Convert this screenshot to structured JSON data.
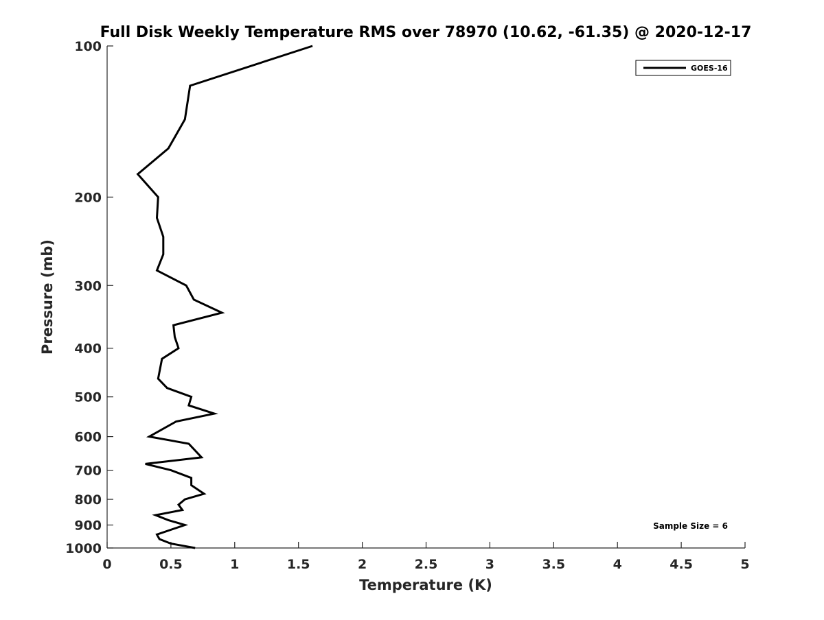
{
  "chart_data": {
    "type": "line",
    "title": "Full Disk Weekly Temperature RMS over 78970 (10.62, -61.35) @ 2020-12-17",
    "xlabel": "Temperature (K)",
    "ylabel": "Pressure (mb)",
    "xlim": [
      0,
      5
    ],
    "ylim": [
      100,
      1000
    ],
    "yscale": "log",
    "y_reversed": true,
    "grid": false,
    "xticks": [
      "0",
      "0.5",
      "1",
      "1.5",
      "2",
      "2.5",
      "3",
      "3.5",
      "4",
      "4.5",
      "5"
    ],
    "yticks": [
      "100",
      "200",
      "300",
      "400",
      "500",
      "600",
      "700",
      "800",
      "900",
      "1000"
    ],
    "legend": {
      "placement": "top-right",
      "entries": [
        "GOES-16"
      ]
    },
    "annotation": "Sample Size = 6",
    "series": [
      {
        "name": "GOES-16",
        "color": "#000000",
        "temperature": [
          1.61,
          0.65,
          0.61,
          0.48,
          0.24,
          0.4,
          0.39,
          0.44,
          0.44,
          0.39,
          0.62,
          0.68,
          0.9,
          0.52,
          0.53,
          0.56,
          0.43,
          0.4,
          0.47,
          0.66,
          0.64,
          0.84,
          0.54,
          0.33,
          0.64,
          0.74,
          0.3,
          0.5,
          0.66,
          0.66,
          0.76,
          0.61,
          0.56,
          0.59,
          0.38,
          0.48,
          0.61,
          0.39,
          0.41,
          0.5,
          0.69
        ],
        "pressure": [
          100,
          120,
          140,
          160,
          180,
          200,
          220,
          240,
          260,
          280,
          300,
          320,
          340,
          360,
          380,
          400,
          420,
          460,
          480,
          500,
          520,
          540,
          560,
          600,
          620,
          660,
          680,
          700,
          725,
          750,
          780,
          800,
          820,
          840,
          860,
          880,
          900,
          940,
          960,
          980,
          1000
        ]
      }
    ]
  }
}
